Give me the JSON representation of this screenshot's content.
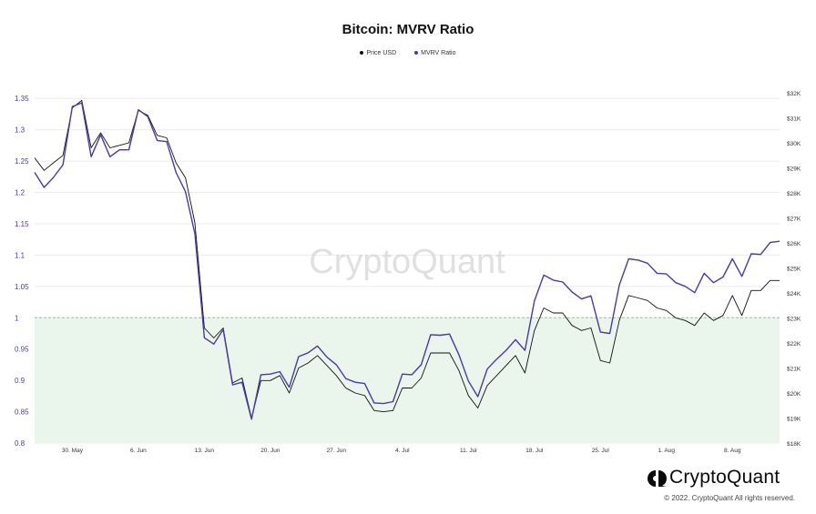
{
  "brand": {
    "watermark": "CryptoQuant",
    "logo_name": "CryptoQuant",
    "copyright": "© 2022. CryptoQuant All rights reserved."
  },
  "chart_data": {
    "type": "line",
    "title": "Bitcoin: MVRV Ratio",
    "legend": [
      "Price USD",
      "MVRV Ratio"
    ],
    "legend_position": "top-center",
    "grid": true,
    "x_tick_labels": [
      "30. May",
      "6. Jun",
      "13. Jun",
      "20. Jun",
      "27. Jun",
      "4. Jul",
      "11. Jul",
      "18. Jul",
      "25. Jul",
      "1. Aug",
      "8. Aug"
    ],
    "x_range": [
      "2022-05-26",
      "2022-08-13"
    ],
    "y_left": {
      "label": "",
      "ylim": [
        0.8,
        1.375
      ],
      "ticks": [
        "0.8",
        "0.85",
        "0.9",
        "0.95",
        "1",
        "1.05",
        "1.1",
        "1.15",
        "1.2",
        "1.25",
        "1.3",
        "1.35"
      ]
    },
    "y_right": {
      "label": "",
      "ylim": [
        18000,
        32400
      ],
      "ticks": [
        "$18K",
        "$19K",
        "$20K",
        "$21K",
        "$22K",
        "$23K",
        "$24K",
        "$25K",
        "$26K",
        "$27K",
        "$28K",
        "$29K",
        "$30K",
        "$31K",
        "$32K"
      ]
    },
    "reference_line": {
      "value": 1,
      "axis": "left",
      "color": "#8fc79a",
      "fill_below": "#eaf5ec"
    },
    "series": [
      {
        "name": "Price USD",
        "axis": "right",
        "color": "#111111",
        "points": [
          [
            "2022-05-26",
            29400
          ],
          [
            "2022-05-27",
            28900
          ],
          [
            "2022-05-28",
            29200
          ],
          [
            "2022-05-29",
            29500
          ],
          [
            "2022-05-30",
            31400
          ],
          [
            "2022-05-31",
            31700
          ],
          [
            "2022-06-01",
            29800
          ],
          [
            "2022-06-02",
            30400
          ],
          [
            "2022-06-03",
            29800
          ],
          [
            "2022-06-04",
            29900
          ],
          [
            "2022-06-05",
            30000
          ],
          [
            "2022-06-06",
            31300
          ],
          [
            "2022-06-07",
            31100
          ],
          [
            "2022-06-08",
            30300
          ],
          [
            "2022-06-09",
            30200
          ],
          [
            "2022-06-10",
            29200
          ],
          [
            "2022-06-11",
            28600
          ],
          [
            "2022-06-12",
            26800
          ],
          [
            "2022-06-13",
            22600
          ],
          [
            "2022-06-14",
            22200
          ],
          [
            "2022-06-15",
            22600
          ],
          [
            "2022-06-16",
            20400
          ],
          [
            "2022-06-17",
            20600
          ],
          [
            "2022-06-18",
            19000
          ],
          [
            "2022-06-19",
            20500
          ],
          [
            "2022-06-20",
            20500
          ],
          [
            "2022-06-21",
            20700
          ],
          [
            "2022-06-22",
            20000
          ],
          [
            "2022-06-23",
            21000
          ],
          [
            "2022-06-24",
            21200
          ],
          [
            "2022-06-25",
            21500
          ],
          [
            "2022-06-26",
            21100
          ],
          [
            "2022-06-27",
            20700
          ],
          [
            "2022-06-28",
            20200
          ],
          [
            "2022-06-29",
            20000
          ],
          [
            "2022-06-30",
            19900
          ],
          [
            "2022-07-01",
            19300
          ],
          [
            "2022-07-02",
            19250
          ],
          [
            "2022-07-03",
            19300
          ],
          [
            "2022-07-04",
            20200
          ],
          [
            "2022-07-05",
            20200
          ],
          [
            "2022-07-06",
            20600
          ],
          [
            "2022-07-07",
            21600
          ],
          [
            "2022-07-08",
            21600
          ],
          [
            "2022-07-09",
            21600
          ],
          [
            "2022-07-10",
            20900
          ],
          [
            "2022-07-11",
            19900
          ],
          [
            "2022-07-12",
            19400
          ],
          [
            "2022-07-13",
            20300
          ],
          [
            "2022-07-14",
            20700
          ],
          [
            "2022-07-15",
            21100
          ],
          [
            "2022-07-16",
            21500
          ],
          [
            "2022-07-17",
            20800
          ],
          [
            "2022-07-18",
            22500
          ],
          [
            "2022-07-19",
            23400
          ],
          [
            "2022-07-20",
            23200
          ],
          [
            "2022-07-21",
            23200
          ],
          [
            "2022-07-22",
            22700
          ],
          [
            "2022-07-23",
            22500
          ],
          [
            "2022-07-24",
            22600
          ],
          [
            "2022-07-25",
            21300
          ],
          [
            "2022-07-26",
            21200
          ],
          [
            "2022-07-27",
            22900
          ],
          [
            "2022-07-28",
            23900
          ],
          [
            "2022-07-29",
            23800
          ],
          [
            "2022-07-30",
            23700
          ],
          [
            "2022-07-31",
            23400
          ],
          [
            "2022-08-01",
            23300
          ],
          [
            "2022-08-02",
            23000
          ],
          [
            "2022-08-03",
            22900
          ],
          [
            "2022-08-04",
            22700
          ],
          [
            "2022-08-05",
            23200
          ],
          [
            "2022-08-06",
            22900
          ],
          [
            "2022-08-07",
            23100
          ],
          [
            "2022-08-08",
            23900
          ],
          [
            "2022-08-09",
            23100
          ],
          [
            "2022-08-10",
            24100
          ],
          [
            "2022-08-11",
            24100
          ],
          [
            "2022-08-12",
            24500
          ],
          [
            "2022-08-13",
            24500
          ]
        ]
      },
      {
        "name": "MVRV Ratio",
        "axis": "left",
        "color": "#4a3aa4",
        "points": [
          [
            "2022-05-26",
            1.232
          ],
          [
            "2022-05-27",
            1.208
          ],
          [
            "2022-05-28",
            1.224
          ],
          [
            "2022-05-29",
            1.244
          ],
          [
            "2022-05-30",
            1.337
          ],
          [
            "2022-05-31",
            1.343
          ],
          [
            "2022-06-01",
            1.257
          ],
          [
            "2022-06-02",
            1.292
          ],
          [
            "2022-06-03",
            1.257
          ],
          [
            "2022-06-04",
            1.268
          ],
          [
            "2022-06-05",
            1.268
          ],
          [
            "2022-06-06",
            1.332
          ],
          [
            "2022-06-07",
            1.321
          ],
          [
            "2022-06-08",
            1.283
          ],
          [
            "2022-06-09",
            1.281
          ],
          [
            "2022-06-10",
            1.232
          ],
          [
            "2022-06-11",
            1.201
          ],
          [
            "2022-06-12",
            1.134
          ],
          [
            "2022-06-13",
            0.968
          ],
          [
            "2022-06-14",
            0.958
          ],
          [
            "2022-06-15",
            0.981
          ],
          [
            "2022-06-16",
            0.893
          ],
          [
            "2022-06-17",
            0.897
          ],
          [
            "2022-06-18",
            0.838
          ],
          [
            "2022-06-19",
            0.909
          ],
          [
            "2022-06-20",
            0.91
          ],
          [
            "2022-06-21",
            0.914
          ],
          [
            "2022-06-22",
            0.889
          ],
          [
            "2022-06-23",
            0.938
          ],
          [
            "2022-06-24",
            0.944
          ],
          [
            "2022-06-25",
            0.955
          ],
          [
            "2022-06-26",
            0.937
          ],
          [
            "2022-06-27",
            0.925
          ],
          [
            "2022-06-28",
            0.903
          ],
          [
            "2022-06-29",
            0.897
          ],
          [
            "2022-06-30",
            0.895
          ],
          [
            "2022-07-01",
            0.864
          ],
          [
            "2022-07-02",
            0.863
          ],
          [
            "2022-07-03",
            0.866
          ],
          [
            "2022-07-04",
            0.91
          ],
          [
            "2022-07-05",
            0.909
          ],
          [
            "2022-07-06",
            0.925
          ],
          [
            "2022-07-07",
            0.973
          ],
          [
            "2022-07-08",
            0.972
          ],
          [
            "2022-07-09",
            0.974
          ],
          [
            "2022-07-10",
            0.941
          ],
          [
            "2022-07-11",
            0.899
          ],
          [
            "2022-07-12",
            0.874
          ],
          [
            "2022-07-13",
            0.918
          ],
          [
            "2022-07-14",
            0.934
          ],
          [
            "2022-07-15",
            0.948
          ],
          [
            "2022-07-16",
            0.965
          ],
          [
            "2022-07-17",
            0.948
          ],
          [
            "2022-07-18",
            1.027
          ],
          [
            "2022-07-19",
            1.068
          ],
          [
            "2022-07-20",
            1.06
          ],
          [
            "2022-07-21",
            1.057
          ],
          [
            "2022-07-22",
            1.041
          ],
          [
            "2022-07-23",
            1.03
          ],
          [
            "2022-07-24",
            1.035
          ],
          [
            "2022-07-25",
            0.977
          ],
          [
            "2022-07-26",
            0.975
          ],
          [
            "2022-07-27",
            1.052
          ],
          [
            "2022-07-28",
            1.094
          ],
          [
            "2022-07-29",
            1.092
          ],
          [
            "2022-07-30",
            1.087
          ],
          [
            "2022-07-31",
            1.071
          ],
          [
            "2022-08-01",
            1.07
          ],
          [
            "2022-08-02",
            1.056
          ],
          [
            "2022-08-03",
            1.05
          ],
          [
            "2022-08-04",
            1.04
          ],
          [
            "2022-08-05",
            1.071
          ],
          [
            "2022-08-06",
            1.056
          ],
          [
            "2022-08-07",
            1.065
          ],
          [
            "2022-08-08",
            1.094
          ],
          [
            "2022-08-09",
            1.066
          ],
          [
            "2022-08-10",
            1.102
          ],
          [
            "2022-08-11",
            1.101
          ],
          [
            "2022-08-12",
            1.12
          ],
          [
            "2022-08-13",
            1.122
          ]
        ]
      }
    ]
  }
}
